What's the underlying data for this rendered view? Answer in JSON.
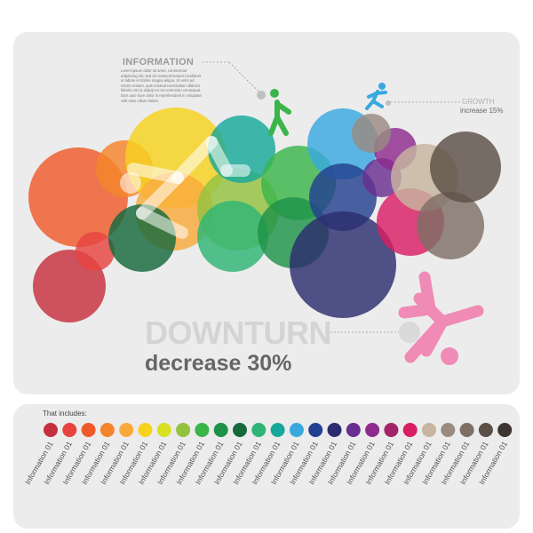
{
  "info": {
    "title": "INFORMATION",
    "body": "Lorem ipsum dolor sit amet, consectetur adipiscing elit, sed do eiusmod tempor incididunt ut labore et dolore magna aliqua. Ut enim ad minim veniam, quis nostrud exercitation ullamco laboris nisi ut aliquip ex ea commodo consequat. Duis aute irure dolor in reprehenderit in voluptate velit esse cillum dolore."
  },
  "growth": {
    "title": "GROWTH",
    "subtitle": "increase 15%"
  },
  "downturn": {
    "title": "DOWNTURN",
    "subtitle": "decrease 30%"
  },
  "legend": {
    "heading": "That includes:",
    "label": "Information 01",
    "colors": [
      "#c62f3e",
      "#e7433f",
      "#ee5a2a",
      "#f4852b",
      "#f9a93c",
      "#f6d21f",
      "#d9e021",
      "#93c23f",
      "#3bb54a",
      "#1e9348",
      "#15693c",
      "#2fb475",
      "#16a89a",
      "#39a8df",
      "#233f8f",
      "#2c2d6e",
      "#6a2d90",
      "#8d2b8e",
      "#a3236b",
      "#d91d63",
      "#c7b59f",
      "#9a8a80",
      "#7e6f65",
      "#5c4f47",
      "#3e3431"
    ]
  },
  "icons": {
    "walking": "walking-person-icon",
    "running": "running-person-icon",
    "falling": "falling-person-icon",
    "falling_large": "falling-person-large-icon"
  }
}
